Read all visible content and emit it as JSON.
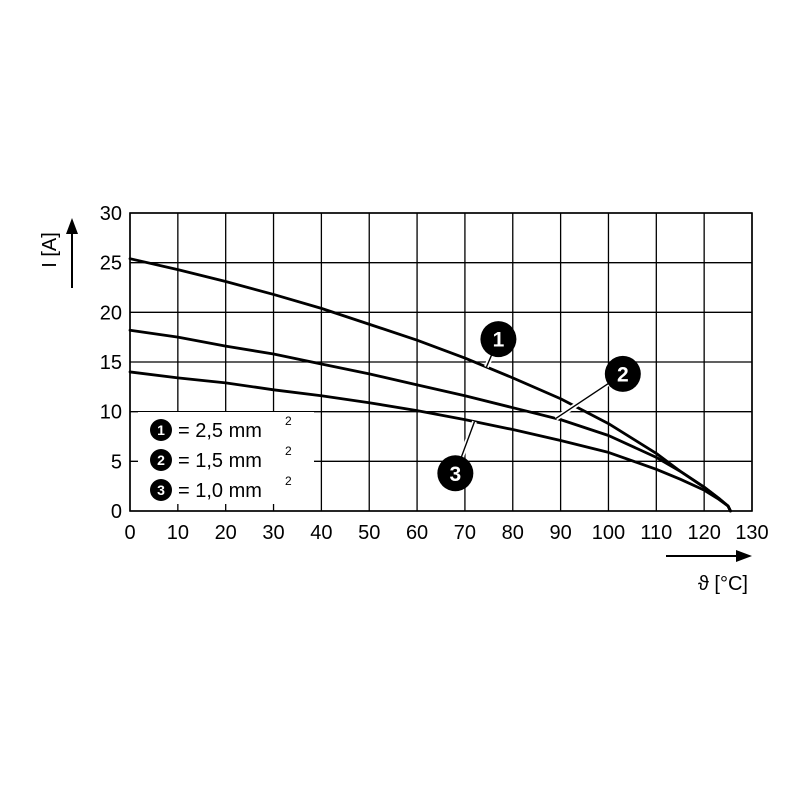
{
  "chart_data": {
    "type": "line",
    "xlabel": "ϑ [°C]",
    "ylabel": "I [A]",
    "xlim": [
      0,
      130
    ],
    "ylim": [
      0,
      30
    ],
    "x_ticks": [
      0,
      10,
      20,
      30,
      40,
      50,
      60,
      70,
      80,
      90,
      100,
      110,
      120,
      130
    ],
    "y_ticks": [
      0,
      5,
      10,
      15,
      20,
      25,
      30
    ],
    "grid": true,
    "series": [
      {
        "id": "1",
        "x": [
          0,
          10,
          20,
          30,
          40,
          50,
          60,
          70,
          80,
          90,
          100,
          110,
          115,
          120,
          123,
          125,
          125.5
        ],
        "y": [
          25.4,
          24.3,
          23.1,
          21.8,
          20.4,
          18.8,
          17.2,
          15.4,
          13.4,
          11.3,
          8.8,
          5.8,
          4.0,
          2.4,
          1.3,
          0.5,
          0
        ]
      },
      {
        "id": "2",
        "x": [
          0,
          10,
          20,
          30,
          40,
          50,
          60,
          70,
          80,
          90,
          100,
          110,
          115,
          120,
          123,
          125,
          125.5
        ],
        "y": [
          18.2,
          17.5,
          16.6,
          15.8,
          14.8,
          13.8,
          12.7,
          11.6,
          10.4,
          9.2,
          7.6,
          5.4,
          4.0,
          2.4,
          1.3,
          0.5,
          0
        ]
      },
      {
        "id": "3",
        "x": [
          0,
          10,
          20,
          30,
          40,
          50,
          60,
          70,
          80,
          90,
          100,
          110,
          115,
          120,
          123,
          125,
          125.5
        ],
        "y": [
          14.0,
          13.4,
          12.9,
          12.2,
          11.6,
          10.9,
          10.1,
          9.2,
          8.2,
          7.1,
          5.9,
          4.2,
          3.2,
          2.1,
          1.2,
          0.5,
          0
        ]
      }
    ],
    "legend": [
      {
        "id": "1",
        "text": "= 2,5 mm",
        "sup": "2"
      },
      {
        "id": "2",
        "text": "= 1,5 mm",
        "sup": "2"
      },
      {
        "id": "3",
        "text": "= 1,0 mm",
        "sup": "2"
      }
    ],
    "callouts": [
      {
        "id": "1",
        "x": 77,
        "y": 17.3
      },
      {
        "id": "2",
        "x": 103,
        "y": 13.8
      },
      {
        "id": "3",
        "x": 68,
        "y": 3.8
      }
    ]
  }
}
